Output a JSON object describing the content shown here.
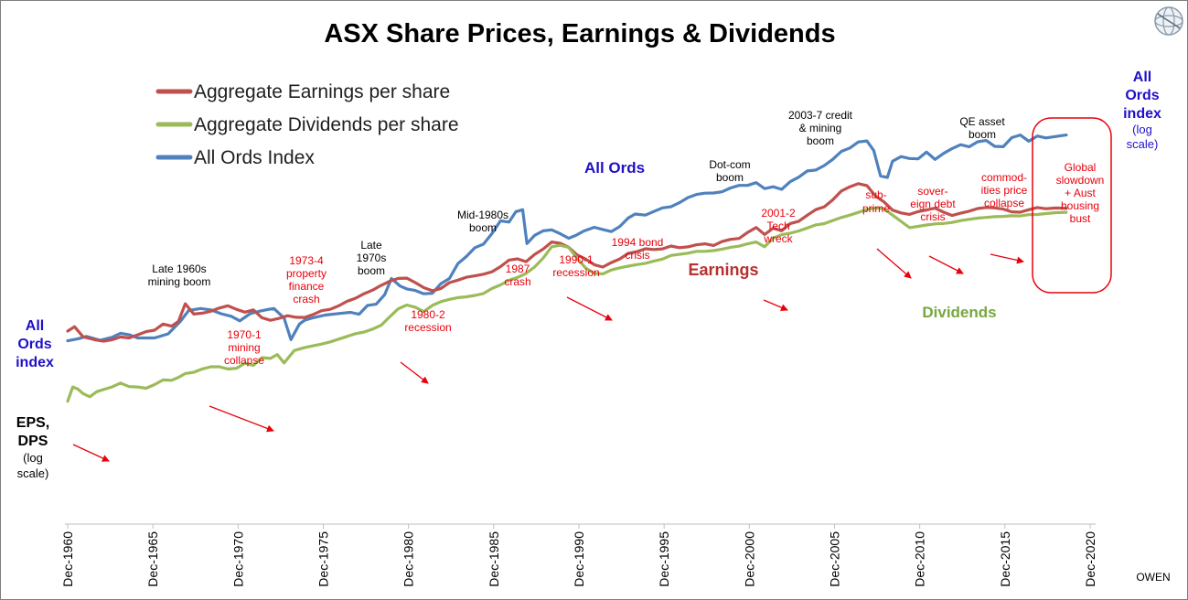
{
  "title": "ASX Share Prices, Earnings & Dividends",
  "legend": [
    {
      "label": "Aggregate Earnings per share",
      "color": "#c0504d"
    },
    {
      "label": "Aggregate Dividends per share",
      "color": "#9bbb59"
    },
    {
      "label": "All Ords Index",
      "color": "#4f81bd"
    }
  ],
  "left_axis": {
    "top_lines": [
      "All",
      "Ords",
      "index"
    ],
    "bottom_lines": [
      "EPS,",
      "DPS"
    ],
    "bottom_note": [
      "(log",
      "scale)"
    ]
  },
  "right_axis": {
    "lines": [
      "All",
      "Ords",
      "index"
    ],
    "note": [
      "(log",
      "scale)"
    ]
  },
  "series_labels": {
    "all_ords": "All Ords",
    "earnings": "Earnings",
    "dividends": "Dividends"
  },
  "credit": "OWEN",
  "colors": {
    "earnings": "#c0504d",
    "dividends": "#9bbb59",
    "all_ords": "#4f81bd",
    "annotation_red": "#e8000b",
    "axis_blue": "#2010c8",
    "box": "#e8000b"
  },
  "logo_icon": "globe-logo-icon",
  "annotations": {
    "booms": [
      {
        "lines": [
          "Late 1960s",
          "mining boom"
        ]
      },
      {
        "lines": [
          "Late",
          "1970s",
          "boom"
        ]
      },
      {
        "lines": [
          "Mid-1980s",
          "boom"
        ]
      },
      {
        "lines": [
          "Dot-com",
          "boom"
        ]
      },
      {
        "lines": [
          "2003-7 credit",
          "& mining",
          "boom"
        ]
      },
      {
        "lines": [
          "QE asset",
          "boom"
        ]
      }
    ],
    "busts": [
      {
        "lines": [
          "1970-1",
          "mining",
          "collapse"
        ]
      },
      {
        "lines": [
          "1973-4",
          "property",
          "finance",
          "crash"
        ]
      },
      {
        "lines": [
          "1980-2",
          "recession"
        ]
      },
      {
        "lines": [
          "1987",
          "crash"
        ]
      },
      {
        "lines": [
          "1990-1",
          "recession"
        ]
      },
      {
        "lines": [
          "1994 bond",
          "crisis"
        ]
      },
      {
        "lines": [
          "2001-2",
          "Tech",
          "wreck"
        ]
      },
      {
        "lines": [
          "sub-",
          "prime"
        ]
      },
      {
        "lines": [
          "sover-",
          "eign debt",
          "crisis"
        ]
      },
      {
        "lines": [
          "commod-",
          "ities price",
          "collapse"
        ]
      },
      {
        "lines": [
          "Global",
          "slowdown",
          "+ Aust",
          "housing",
          "bust"
        ]
      }
    ]
  },
  "chart_data": {
    "type": "line",
    "title": "ASX Share Prices, Earnings & Dividends",
    "xlabel": "",
    "ylabel": "log scale",
    "x_range": [
      1960.9,
      2020.9
    ],
    "x_ticks": [
      "Dec-1960",
      "Dec-1965",
      "Dec-1970",
      "Dec-1975",
      "Dec-1980",
      "Dec-1985",
      "Dec-1990",
      "Dec-1995",
      "Dec-2000",
      "Dec-2005",
      "Dec-2010",
      "Dec-2015",
      "Dec-2020"
    ],
    "x_tick_values": [
      1960.9,
      1965.9,
      1970.9,
      1975.9,
      1980.9,
      1985.9,
      1990.9,
      1995.9,
      2000.9,
      2005.9,
      2010.9,
      2015.9,
      2020.9
    ],
    "y_scale": "log",
    "y_range": [
      10,
      10000
    ],
    "y_unit_note": "relative index levels (log scale), estimated from the figure",
    "series": [
      {
        "name": "All Ords Index",
        "axis": "right",
        "x": [
          1960.9,
          1961.5,
          1962.0,
          1962.8,
          1963.5,
          1964.0,
          1964.5,
          1965.0,
          1965.5,
          1966.0,
          1966.8,
          1967.5,
          1968.0,
          1968.7,
          1969.3,
          1969.9,
          1970.5,
          1971.0,
          1971.6,
          1972.2,
          1972.7,
          1973.0,
          1973.6,
          1974.0,
          1974.5,
          1974.8,
          1975.3,
          1976.0,
          1976.8,
          1977.5,
          1978.0,
          1978.5,
          1979.0,
          1979.5,
          1979.9,
          1980.4,
          1980.8,
          1981.3,
          1981.8,
          1982.3,
          1982.8,
          1983.3,
          1983.8,
          1984.3,
          1984.8,
          1985.3,
          1985.8,
          1986.3,
          1986.8,
          1987.2,
          1987.6,
          1987.85,
          1988.3,
          1988.8,
          1989.3,
          1989.8,
          1990.3,
          1990.7,
          1991.2,
          1991.8,
          1992.3,
          1992.8,
          1993.3,
          1993.8,
          1994.2,
          1994.8,
          1995.3,
          1995.8,
          1996.3,
          1996.8,
          1997.3,
          1997.8,
          1998.3,
          1998.8,
          1999.3,
          1999.8,
          2000.3,
          2000.8,
          2001.3,
          2001.8,
          2002.3,
          2002.8,
          2003.3,
          2003.8,
          2004.3,
          2004.8,
          2005.3,
          2005.8,
          2006.3,
          2006.8,
          2007.3,
          2007.8,
          2008.2,
          2008.6,
          2009.0,
          2009.3,
          2009.8,
          2010.3,
          2010.8,
          2011.3,
          2011.8,
          2012.3,
          2012.8,
          2013.3,
          2013.8,
          2014.3,
          2014.8,
          2015.3,
          2015.8,
          2016.3,
          2016.8,
          2017.3,
          2017.8,
          2018.3,
          2018.9,
          2019.5
        ],
        "values": [
          32.5,
          33.5,
          34.7,
          32.8,
          34.2,
          36.3,
          35.6,
          33.9,
          33.9,
          33.9,
          36.0,
          43.1,
          50.7,
          52.2,
          51.2,
          48.4,
          46.6,
          43.6,
          48.4,
          50.3,
          51.6,
          52.2,
          45.4,
          33.1,
          41.6,
          43.9,
          45.6,
          47.4,
          48.5,
          49.4,
          48.0,
          54.7,
          55.6,
          64.0,
          81.1,
          72.7,
          69.6,
          68.0,
          64.8,
          65.4,
          75.2,
          81.1,
          101.0,
          112.1,
          127.6,
          134.4,
          157.2,
          189.2,
          185.7,
          216.3,
          222.5,
          135.4,
          152.8,
          163.2,
          165.6,
          156.6,
          146.4,
          152.5,
          163.0,
          172.0,
          166.5,
          161.5,
          174.2,
          197.3,
          208.9,
          205.6,
          216.9,
          228.8,
          232.3,
          247.0,
          266.2,
          278.6,
          283.8,
          284.6,
          289.5,
          306.2,
          318.3,
          318.3,
          331.3,
          303.7,
          311.7,
          300.2,
          336.3,
          358.9,
          393.1,
          398.7,
          425.5,
          466.2,
          524.3,
          550.7,
          602.2,
          610.7,
          530.5,
          365.1,
          357.5,
          453.7,
          485.8,
          472.0,
          469.2,
          518.4,
          465.8,
          509.1,
          546.3,
          578.0,
          560.3,
          603.1,
          615.1,
          564.5,
          561.4,
          640.9,
          666.6,
          608.3,
          656.8,
          638.8,
          652.1,
          666.8
        ]
      },
      {
        "name": "Aggregate Earnings per share",
        "axis": "left",
        "x": [
          1960.9,
          1961.3,
          1961.8,
          1962.5,
          1963.0,
          1963.5,
          1964.0,
          1964.5,
          1965.0,
          1965.5,
          1966.0,
          1966.5,
          1967.0,
          1967.4,
          1967.8,
          1968.3,
          1968.8,
          1969.3,
          1969.8,
          1970.3,
          1970.8,
          1971.3,
          1971.8,
          1972.3,
          1972.8,
          1973.3,
          1973.8,
          1974.3,
          1974.8,
          1975.3,
          1975.8,
          1976.3,
          1976.8,
          1977.3,
          1977.8,
          1978.3,
          1978.8,
          1979.3,
          1979.8,
          1980.3,
          1980.8,
          1981.3,
          1981.8,
          1982.3,
          1982.8,
          1983.3,
          1983.8,
          1984.3,
          1984.8,
          1985.3,
          1985.8,
          1986.3,
          1986.8,
          1987.3,
          1987.8,
          1988.3,
          1988.8,
          1989.3,
          1989.8,
          1990.3,
          1990.8,
          1991.3,
          1991.8,
          1992.3,
          1992.8,
          1993.3,
          1993.8,
          1994.3,
          1994.8,
          1995.3,
          1995.8,
          1996.3,
          1996.8,
          1997.3,
          1997.8,
          1998.3,
          1998.8,
          1999.3,
          1999.8,
          2000.3,
          2000.8,
          2001.3,
          2001.8,
          2002.3,
          2002.8,
          2003.3,
          2003.8,
          2004.3,
          2004.8,
          2005.3,
          2005.8,
          2006.3,
          2006.8,
          2007.3,
          2007.8,
          2008.3,
          2008.8,
          2009.3,
          2009.8,
          2010.3,
          2010.8,
          2011.3,
          2011.8,
          2012.3,
          2012.8,
          2013.3,
          2013.8,
          2014.3,
          2014.8,
          2015.3,
          2015.8,
          2016.3,
          2016.8,
          2017.3,
          2017.8,
          2018.3,
          2018.9,
          2019.5
        ],
        "values": [
          37.5,
          40.0,
          34.5,
          33.0,
          32.3,
          33.0,
          34.4,
          33.9,
          35.5,
          37.2,
          38.0,
          41.6,
          40.3,
          43.2,
          56.0,
          48.1,
          48.8,
          50.2,
          52.6,
          54.4,
          51.6,
          49.5,
          51.2,
          45.6,
          43.9,
          45.2,
          47.0,
          45.9,
          45.8,
          47.8,
          50.6,
          51.6,
          54.3,
          58.1,
          60.8,
          64.9,
          68.4,
          73.5,
          77.9,
          81.2,
          81.6,
          76.4,
          70.9,
          67.8,
          70.1,
          76.4,
          79.2,
          82.7,
          84.3,
          86.4,
          89.6,
          96.6,
          106.3,
          108.3,
          103.9,
          115.5,
          125.0,
          138.6,
          136.0,
          128.3,
          114.6,
          107.8,
          99.4,
          96.0,
          102.5,
          108.1,
          117.3,
          120.2,
          125.5,
          124.1,
          125.4,
          130.6,
          127.6,
          129.1,
          133.1,
          135.0,
          131.7,
          139.6,
          144.1,
          146.0,
          159.6,
          171.5,
          154.8,
          169.7,
          163.4,
          181.7,
          188.0,
          205.3,
          222.9,
          232.4,
          257.2,
          293.1,
          311.6,
          326.4,
          317.2,
          272.1,
          249.9,
          221.3,
          212.3,
          207.8,
          216.3,
          222.0,
          227.7,
          214.8,
          204.6,
          211.4,
          218.0,
          226.4,
          230.3,
          228.6,
          224.6,
          215.8,
          214.6,
          222.6,
          229.9,
          226.0,
          228.2,
          227.2
        ]
      },
      {
        "name": "Aggregate Dividends per share",
        "axis": "left",
        "x": [
          1960.9,
          1961.2,
          1961.5,
          1961.8,
          1962.2,
          1962.6,
          1963.0,
          1963.5,
          1964.0,
          1964.5,
          1965.0,
          1965.5,
          1966.0,
          1966.5,
          1967.0,
          1967.4,
          1967.8,
          1968.3,
          1968.8,
          1969.3,
          1969.8,
          1970.3,
          1970.8,
          1971.3,
          1971.8,
          1972.3,
          1972.8,
          1973.2,
          1973.6,
          1974.2,
          1974.8,
          1975.3,
          1975.8,
          1976.3,
          1976.8,
          1977.3,
          1977.8,
          1978.3,
          1978.8,
          1979.3,
          1979.8,
          1980.3,
          1980.8,
          1981.3,
          1981.8,
          1982.3,
          1982.8,
          1983.3,
          1983.8,
          1984.3,
          1984.8,
          1985.3,
          1985.8,
          1986.3,
          1986.8,
          1987.3,
          1987.8,
          1988.3,
          1988.8,
          1989.3,
          1989.8,
          1990.3,
          1990.8,
          1991.3,
          1991.8,
          1992.3,
          1992.8,
          1993.3,
          1993.8,
          1994.3,
          1994.8,
          1995.3,
          1995.8,
          1996.3,
          1996.8,
          1997.3,
          1997.8,
          1998.3,
          1998.8,
          1999.3,
          1999.8,
          2000.3,
          2000.8,
          2001.3,
          2001.8,
          2002.3,
          2002.8,
          2003.3,
          2003.8,
          2004.3,
          2004.8,
          2005.3,
          2005.8,
          2006.3,
          2006.8,
          2007.3,
          2007.8,
          2008.3,
          2008.8,
          2009.3,
          2009.8,
          2010.3,
          2010.8,
          2011.3,
          2011.8,
          2012.3,
          2012.8,
          2013.3,
          2013.8,
          2014.3,
          2014.8,
          2015.3,
          2015.8,
          2016.3,
          2016.8,
          2017.3,
          2017.8,
          2018.3,
          2018.9,
          2019.5
        ],
        "values": [
          13.4,
          16.5,
          16.0,
          15.0,
          14.3,
          15.4,
          15.9,
          16.5,
          17.5,
          16.6,
          16.5,
          16.2,
          17.1,
          18.3,
          18.2,
          19.0,
          20.1,
          20.5,
          21.5,
          22.2,
          22.2,
          21.5,
          21.7,
          23.4,
          22.7,
          25.4,
          25.1,
          26.6,
          23.5,
          28.2,
          29.4,
          30.2,
          31.0,
          32.0,
          33.3,
          34.7,
          36.1,
          37.0,
          38.6,
          40.9,
          46.3,
          52.0,
          55.0,
          53.2,
          49.9,
          54.7,
          57.8,
          59.7,
          61.3,
          62.0,
          63.3,
          65.1,
          70.1,
          73.8,
          79.1,
          82.4,
          87.4,
          96.1,
          109.4,
          129.3,
          132.0,
          128.1,
          109.0,
          94.4,
          87.6,
          86.8,
          91.9,
          94.9,
          97.3,
          99.5,
          101.4,
          104.8,
          107.9,
          113.8,
          115.7,
          117.7,
          120.9,
          120.9,
          122.2,
          124.8,
          128.2,
          130.4,
          134.9,
          138.6,
          129.2,
          146.7,
          154.4,
          157.9,
          163.1,
          170.1,
          178.1,
          181.4,
          190.1,
          198.6,
          205.7,
          214.0,
          223.5,
          228.6,
          226.0,
          205.6,
          187.6,
          171.1,
          174.3,
          178.0,
          180.9,
          182.0,
          184.6,
          189.7,
          193.3,
          196.7,
          198.9,
          201.0,
          201.7,
          203.8,
          203.3,
          206.9,
          207.7,
          210.4,
          213.2,
          214.5
        ]
      }
    ]
  }
}
